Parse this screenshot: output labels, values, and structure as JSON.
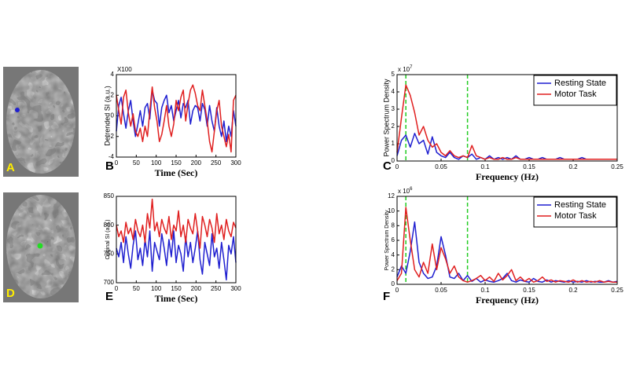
{
  "chart_data": [
    {
      "type": "line",
      "panel_label": "B",
      "xlabel": "Time (Sec)",
      "ylabel": "Detrended SI (a.u.)",
      "y_multiplier": "X100",
      "xlim": [
        0,
        300
      ],
      "xticks": [
        0,
        50,
        100,
        150,
        200,
        250,
        300
      ],
      "ylim": [
        -4,
        4
      ],
      "yticks": [
        -4,
        -2,
        0,
        2,
        4
      ],
      "x": [
        0,
        6,
        12,
        18,
        24,
        30,
        36,
        42,
        48,
        54,
        60,
        66,
        72,
        78,
        84,
        90,
        96,
        102,
        108,
        114,
        120,
        126,
        132,
        138,
        144,
        150,
        156,
        162,
        168,
        174,
        180,
        186,
        192,
        198,
        204,
        210,
        216,
        222,
        228,
        234,
        240,
        246,
        252,
        258,
        264,
        270,
        276,
        282,
        288,
        294,
        300
      ],
      "series": [
        {
          "color": "#1f1fd0",
          "values": [
            -1.5,
            1.0,
            1.8,
            0.2,
            -1.2,
            0.5,
            1.5,
            -0.5,
            -2.0,
            -0.8,
            0.5,
            -1.0,
            0.8,
            1.2,
            -0.3,
            2.5,
            1.5,
            1.2,
            -1.0,
            0.8,
            1.5,
            2.0,
            0.3,
            1.0,
            -0.5,
            0.5,
            1.5,
            -0.2,
            1.2,
            0.8,
            1.5,
            -0.8,
            0.5,
            1.0,
            0.8,
            -0.5,
            1.2,
            0.6,
            -1.0,
            1.0,
            -0.5,
            -1.5,
            0.8,
            -1.0,
            -2.0,
            -0.5,
            -2.5,
            -1.0,
            -2.0,
            0.5,
            -1.0
          ]
        },
        {
          "color": "#e01f1f",
          "values": [
            2.0,
            0.5,
            -0.8,
            1.8,
            2.5,
            0.3,
            -1.0,
            0.2,
            -1.5,
            -2.0,
            -1.2,
            -2.5,
            -1.0,
            -2.0,
            0.5,
            2.8,
            0.8,
            -0.5,
            -2.5,
            -1.8,
            -0.5,
            1.0,
            -1.0,
            -2.0,
            -0.8,
            1.5,
            0.5,
            1.8,
            2.5,
            -0.5,
            1.2,
            2.5,
            3.0,
            2.2,
            1.0,
            0.5,
            2.5,
            1.0,
            -0.5,
            -2.5,
            -3.5,
            -1.5,
            0.5,
            1.5,
            -1.0,
            -2.0,
            -3.0,
            -1.8,
            -3.5,
            1.5,
            2.0
          ]
        }
      ]
    },
    {
      "type": "line",
      "panel_label": "C",
      "xlabel": "Frequency (Hz)",
      "ylabel": "Power Spectrum Density",
      "y_multiplier": "x 10",
      "y_multiplier_exp": "7",
      "xlim": [
        0,
        0.25
      ],
      "xticks": [
        0,
        0.05,
        0.1,
        0.15,
        0.2,
        0.25
      ],
      "ylim": [
        0,
        5
      ],
      "yticks": [
        0,
        1,
        2,
        3,
        4,
        5
      ],
      "vlines": [
        0.01,
        0.08
      ],
      "vline_color": "#22cc22",
      "legend": "upper right",
      "x": [
        0,
        0.005,
        0.01,
        0.015,
        0.02,
        0.025,
        0.03,
        0.035,
        0.04,
        0.045,
        0.05,
        0.055,
        0.06,
        0.065,
        0.07,
        0.075,
        0.08,
        0.085,
        0.09,
        0.095,
        0.1,
        0.105,
        0.11,
        0.115,
        0.12,
        0.125,
        0.13,
        0.135,
        0.14,
        0.145,
        0.15,
        0.155,
        0.16,
        0.165,
        0.17,
        0.175,
        0.18,
        0.185,
        0.19,
        0.195,
        0.2,
        0.205,
        0.21,
        0.215,
        0.22,
        0.225,
        0.23,
        0.235,
        0.24,
        0.245,
        0.25
      ],
      "series": [
        {
          "name": "Resting State",
          "color": "#1f1fd0",
          "values": [
            0.3,
            1.2,
            1.5,
            0.8,
            1.6,
            1.0,
            1.2,
            0.4,
            1.4,
            0.5,
            0.3,
            0.2,
            0.5,
            0.2,
            0.1,
            0.3,
            0.2,
            0.4,
            0.1,
            0.2,
            0.1,
            0.3,
            0.1,
            0.2,
            0.1,
            0.2,
            0.1,
            0.3,
            0.1,
            0.1,
            0.2,
            0.1,
            0.1,
            0.2,
            0.1,
            0.1,
            0.1,
            0.2,
            0.1,
            0.1,
            0.1,
            0.1,
            0.2,
            0.1,
            0.1,
            0.1,
            0.1,
            0.1,
            0.1,
            0.1,
            0.1
          ]
        },
        {
          "name": "Motor Task",
          "color": "#e01f1f",
          "values": [
            0.5,
            2.5,
            4.4,
            3.8,
            2.8,
            1.5,
            2.0,
            1.2,
            0.8,
            1.0,
            0.5,
            0.3,
            0.6,
            0.3,
            0.2,
            0.3,
            0.2,
            0.9,
            0.3,
            0.2,
            0.1,
            0.2,
            0.1,
            0.1,
            0.2,
            0.1,
            0.1,
            0.2,
            0.1,
            0.1,
            0.1,
            0.1,
            0.1,
            0.1,
            0.1,
            0.1,
            0.1,
            0.1,
            0.1,
            0.1,
            0.1,
            0.1,
            0.1,
            0.1,
            0.1,
            0.1,
            0.1,
            0.1,
            0.1,
            0.1,
            0.1
          ]
        }
      ]
    },
    {
      "type": "line",
      "panel_label": "E",
      "xlabel": "Time (Sec)",
      "ylabel": "Original SI (a.u.)",
      "xlim": [
        0,
        300
      ],
      "xticks": [
        0,
        50,
        100,
        150,
        200,
        250,
        300
      ],
      "ylim": [
        700,
        850
      ],
      "yticks": [
        700,
        750,
        800,
        850
      ],
      "x": [
        0,
        6,
        12,
        18,
        24,
        30,
        36,
        42,
        48,
        54,
        60,
        66,
        72,
        78,
        84,
        90,
        96,
        102,
        108,
        114,
        120,
        126,
        132,
        138,
        144,
        150,
        156,
        162,
        168,
        174,
        180,
        186,
        192,
        198,
        204,
        210,
        216,
        222,
        228,
        234,
        240,
        246,
        252,
        258,
        264,
        270,
        276,
        282,
        288,
        294,
        300
      ],
      "series": [
        {
          "color": "#1f1fd0",
          "values": [
            760,
            745,
            770,
            735,
            780,
            750,
            725,
            765,
            790,
            740,
            760,
            730,
            775,
            745,
            790,
            720,
            770,
            755,
            740,
            785,
            760,
            730,
            775,
            745,
            790,
            735,
            765,
            750,
            720,
            780,
            745,
            770,
            735,
            760,
            790,
            740,
            715,
            770,
            750,
            730,
            785,
            745,
            760,
            725,
            770,
            740,
            705,
            765,
            750,
            780,
            735
          ]
        },
        {
          "color": "#e01f1f",
          "values": [
            800,
            780,
            790,
            770,
            805,
            785,
            795,
            775,
            810,
            790,
            780,
            800,
            770,
            820,
            795,
            845,
            790,
            805,
            780,
            810,
            795,
            785,
            815,
            775,
            800,
            790,
            825,
            780,
            800,
            770,
            810,
            795,
            785,
            820,
            790,
            760,
            815,
            800,
            780,
            810,
            795,
            770,
            820,
            785,
            800,
            775,
            810,
            790,
            780,
            805,
            795
          ]
        }
      ]
    },
    {
      "type": "line",
      "panel_label": "F",
      "xlabel": "Frequency (Hz)",
      "ylabel": "Power Spectrum Density",
      "y_multiplier": "x 10",
      "y_multiplier_exp": "6",
      "xlim": [
        0,
        0.25
      ],
      "xticks": [
        0,
        0.05,
        0.1,
        0.15,
        0.2,
        0.25
      ],
      "ylim": [
        0,
        12
      ],
      "yticks": [
        0,
        2,
        4,
        6,
        8,
        10,
        12
      ],
      "vlines": [
        0.01,
        0.08
      ],
      "vline_color": "#22cc22",
      "legend": "upper right",
      "x": [
        0,
        0.005,
        0.01,
        0.015,
        0.02,
        0.025,
        0.03,
        0.035,
        0.04,
        0.045,
        0.05,
        0.055,
        0.06,
        0.065,
        0.07,
        0.075,
        0.08,
        0.085,
        0.09,
        0.095,
        0.1,
        0.105,
        0.11,
        0.115,
        0.12,
        0.125,
        0.13,
        0.135,
        0.14,
        0.145,
        0.15,
        0.155,
        0.16,
        0.165,
        0.17,
        0.175,
        0.18,
        0.185,
        0.19,
        0.195,
        0.2,
        0.205,
        0.21,
        0.215,
        0.22,
        0.225,
        0.23,
        0.235,
        0.24,
        0.245,
        0.25
      ],
      "series": [
        {
          "name": "Resting State",
          "color": "#1f1fd0",
          "values": [
            1.0,
            2.5,
            1.5,
            4.5,
            8.5,
            3.0,
            1.5,
            0.8,
            1.0,
            2.5,
            6.5,
            4.0,
            1.0,
            0.8,
            1.5,
            0.5,
            1.2,
            0.4,
            0.8,
            0.3,
            0.6,
            0.4,
            0.3,
            0.5,
            0.8,
            1.5,
            0.5,
            0.3,
            0.6,
            0.4,
            0.3,
            0.8,
            0.4,
            0.3,
            0.6,
            0.3,
            0.5,
            0.4,
            0.3,
            0.5,
            0.3,
            0.4,
            0.3,
            0.5,
            0.3,
            0.4,
            0.3,
            0.3,
            0.5,
            0.3,
            0.4
          ]
        },
        {
          "name": "Motor Task",
          "color": "#e01f1f",
          "values": [
            0.5,
            1.5,
            10.5,
            6.0,
            2.0,
            1.0,
            3.0,
            1.5,
            5.5,
            2.0,
            5.0,
            3.5,
            1.5,
            2.5,
            1.0,
            0.5,
            0.3,
            0.5,
            0.8,
            1.2,
            0.5,
            1.0,
            0.4,
            1.5,
            0.6,
            1.2,
            2.0,
            0.5,
            1.0,
            0.4,
            0.8,
            0.3,
            0.5,
            1.0,
            0.4,
            0.6,
            0.3,
            0.5,
            0.4,
            0.3,
            0.6,
            0.3,
            0.5,
            0.3,
            0.4,
            0.3,
            0.5,
            0.3,
            0.4,
            0.3,
            0.3
          ]
        }
      ]
    }
  ],
  "images": [
    {
      "panel_label": "A"
    },
    {
      "panel_label": "D"
    }
  ]
}
